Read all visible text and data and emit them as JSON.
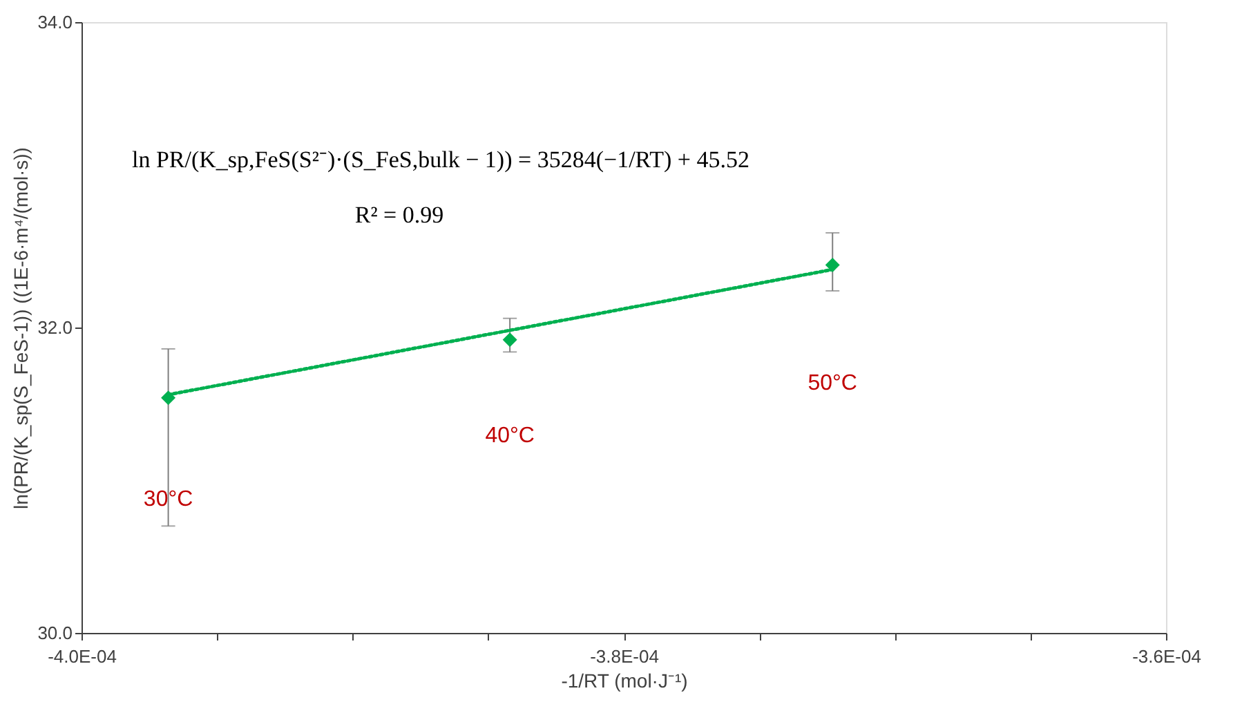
{
  "chart_data": {
    "type": "scatter",
    "xlabel": "-1/RT (mol·J⁻¹)",
    "ylabel": "ln(PR/(K_sp(S_FeS-1)) ((1E-6·m⁴/(mol·s))",
    "x": [
      -0.0003968,
      -0.0003842,
      -0.0003723
    ],
    "series": [
      {
        "color": "#00b050",
        "marker": "diamond",
        "values": [
          31.54,
          31.92,
          32.41
        ],
        "errors": [
          [
            30.7,
            31.86
          ],
          [
            31.84,
            32.06
          ],
          [
            32.24,
            32.62
          ]
        ]
      },
      {
        "type": "line",
        "color": "#00b050",
        "line_style": "dotted",
        "marker": "none",
        "x": [
          -0.0003968,
          -0.0003723
        ],
        "values": [
          31.56,
          32.38
        ]
      }
    ],
    "xlim": [
      -0.0004,
      -0.00036
    ],
    "xticks": [
      {
        "value": -0.0004,
        "label": "-4.0E-04"
      },
      {
        "value": -0.000395,
        "label": null
      },
      {
        "value": -0.00039,
        "label": null
      },
      {
        "value": -0.000385,
        "label": null
      },
      {
        "value": -0.00038,
        "label": "-3.8E-04"
      },
      {
        "value": -0.000375,
        "label": null
      },
      {
        "value": -0.00037,
        "label": null
      },
      {
        "value": -0.000365,
        "label": null
      },
      {
        "value": -0.00036,
        "label": "-3.6E-04"
      }
    ],
    "ylim": [
      30,
      34
    ],
    "yticks": [
      {
        "value": 30,
        "label": "30.0"
      },
      {
        "value": 32,
        "label": "32.0"
      },
      {
        "value": 34,
        "label": "34.0"
      }
    ],
    "grid": false,
    "annotations": [
      {
        "text": "ln PR/(K_sp,FeS(S²⁻)·(S_FeS,bulk − 1)) = 35284(−1/RT) + 45.52"
      },
      {
        "text": "R² = 0.99"
      },
      "30°C",
      "40°C",
      "50°C"
    ]
  }
}
